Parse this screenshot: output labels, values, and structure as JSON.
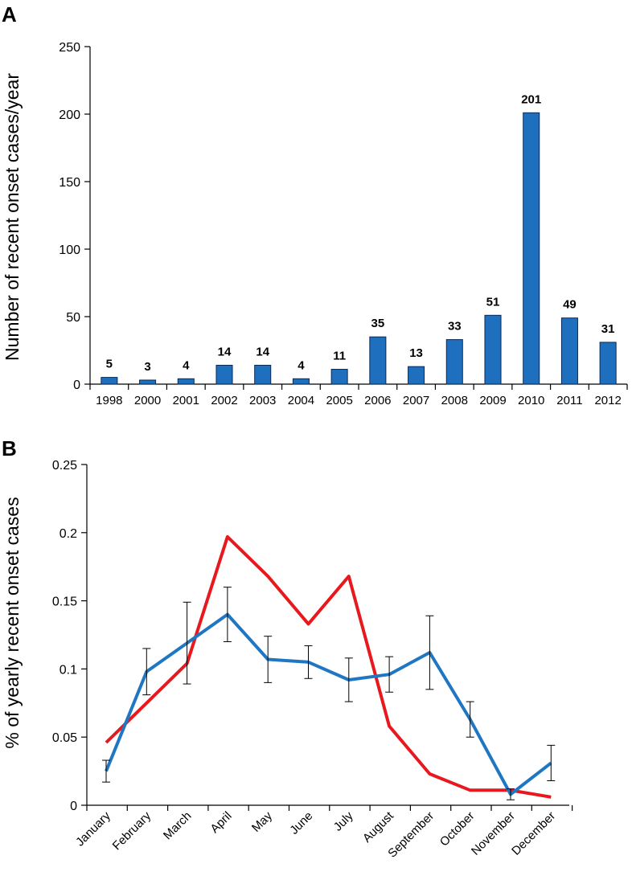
{
  "chart_data": [
    {
      "type": "bar",
      "panel_label": "A",
      "title": "",
      "xlabel": "",
      "ylabel": "Number of recent onset cases/year",
      "ylim": [
        0,
        250
      ],
      "yticks": [
        "0",
        "50",
        "100",
        "150",
        "200",
        "250"
      ],
      "categories": [
        "1998",
        "2000",
        "2001",
        "2002",
        "2003",
        "2004",
        "2005",
        "2006",
        "2007",
        "2008",
        "2009",
        "2010",
        "2011",
        "2012"
      ],
      "values": [
        5,
        3,
        4,
        14,
        14,
        4,
        11,
        35,
        13,
        33,
        51,
        201,
        49,
        31
      ],
      "data_labels": [
        "5",
        "3",
        "4",
        "14",
        "14",
        "4",
        "11",
        "35",
        "13",
        "33",
        "51",
        "201",
        "49",
        "31"
      ],
      "bar_color": "#1f6fbf"
    },
    {
      "type": "line",
      "panel_label": "B",
      "title": "",
      "xlabel": "",
      "ylabel": "% of yearly recent onset cases",
      "ylim": [
        0,
        0.25
      ],
      "yticks": [
        "0",
        "0.05",
        "0.1",
        "0.15",
        "0.2",
        "0.25"
      ],
      "categories": [
        "January",
        "February",
        "March",
        "April",
        "May",
        "June",
        "July",
        "August",
        "September",
        "October",
        "November",
        "December"
      ],
      "series": [
        {
          "name": "blue",
          "color": "#1f77c4",
          "values": [
            0.025,
            0.098,
            0.119,
            0.14,
            0.107,
            0.105,
            0.092,
            0.096,
            0.112,
            0.063,
            0.008,
            0.031
          ],
          "error": [
            0.008,
            0.017,
            0.03,
            0.02,
            0.017,
            0.012,
            0.016,
            0.013,
            0.027,
            0.013,
            0.004,
            0.013
          ]
        },
        {
          "name": "red",
          "color": "#e8191e",
          "values": [
            0.046,
            0.075,
            0.104,
            0.197,
            0.168,
            0.133,
            0.168,
            0.058,
            0.023,
            0.011,
            0.011,
            0.006
          ]
        }
      ]
    }
  ]
}
